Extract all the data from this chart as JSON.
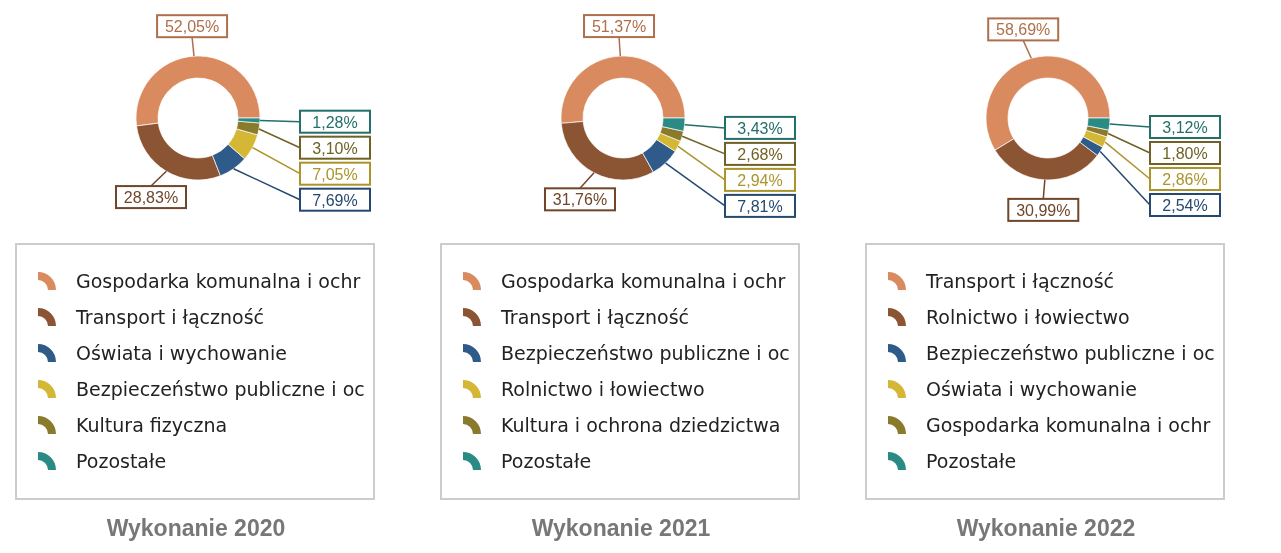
{
  "chart_data": [
    {
      "type": "donut",
      "title": "Wykonanie 2020",
      "legend": "bottom",
      "categories": [
        "Gospodarka komunalna i ochr",
        "Transport i łączność",
        "Oświata i wychowanie",
        "Bezpieczeństwo publiczne i oc",
        "Kultura fizyczna",
        "Pozostałe"
      ],
      "values": [
        52.05,
        28.83,
        7.69,
        7.05,
        3.1,
        1.28
      ],
      "value_labels": [
        "52,05%",
        "28,83%",
        "7,69%",
        "7,05%",
        "3,10%",
        "1,28%"
      ],
      "colors": [
        "#d98a5e",
        "#8b5534",
        "#2e5b8a",
        "#d4b735",
        "#8a7a2c",
        "#2a8a84"
      ]
    },
    {
      "type": "donut",
      "title": "Wykonanie 2021",
      "legend": "bottom",
      "categories": [
        "Gospodarka komunalna i ochr",
        "Transport i łączność",
        "Bezpieczeństwo publiczne i oc",
        "Rolnictwo i łowiectwo",
        "Kultura i ochrona dziedzictwa",
        "Pozostałe"
      ],
      "values": [
        51.37,
        31.76,
        7.81,
        2.94,
        2.68,
        3.43
      ],
      "value_labels": [
        "51,37%",
        "31,76%",
        "7,81%",
        "2,94%",
        "2,68%",
        "3,43%"
      ],
      "colors": [
        "#d98a5e",
        "#8b5534",
        "#2e5b8a",
        "#d4b735",
        "#8a7a2c",
        "#2a8a84"
      ]
    },
    {
      "type": "donut",
      "title": "Wykonanie 2022",
      "legend": "bottom",
      "categories": [
        "Transport i łączność",
        "Rolnictwo i łowiectwo",
        "Bezpieczeństwo publiczne i oc",
        "Oświata i wychowanie",
        "Gospodarka komunalna i ochr",
        "Pozostałe"
      ],
      "values": [
        58.69,
        30.99,
        2.54,
        2.86,
        1.8,
        3.12
      ],
      "value_labels": [
        "58,69%",
        "30,99%",
        "2,54%",
        "2,86%",
        "1,80%",
        "3,12%"
      ],
      "colors": [
        "#d98a5e",
        "#8b5534",
        "#2e5b8a",
        "#d4b735",
        "#8a7a2c",
        "#2a8a84"
      ]
    }
  ]
}
